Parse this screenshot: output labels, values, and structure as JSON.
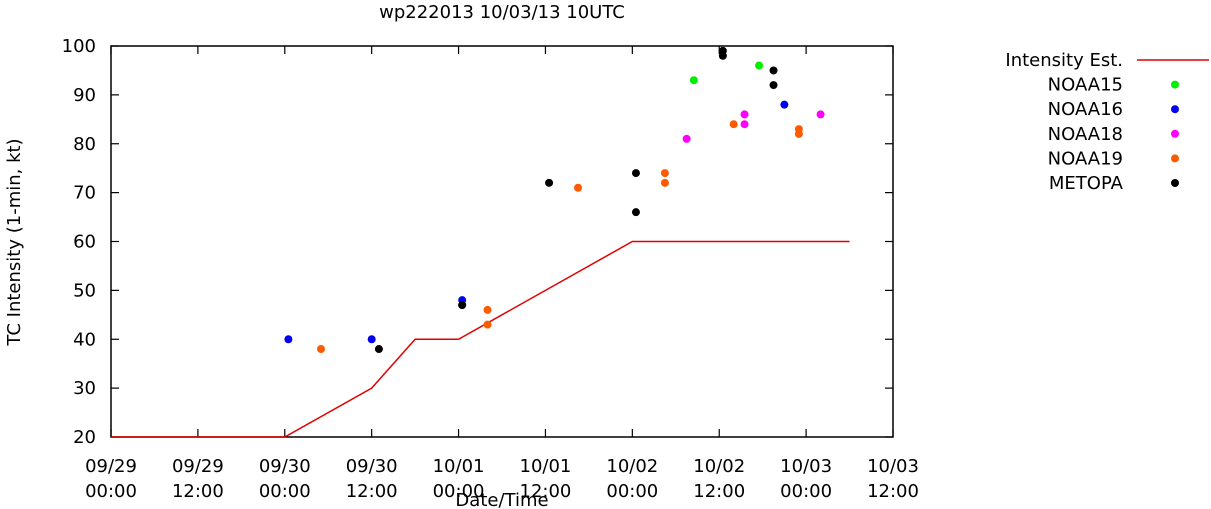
{
  "chart_data": {
    "type": "scatter",
    "title": "wp222013 10/03/13 10UTC",
    "xlabel": "Date/Time",
    "ylabel": "TC Intensity (1-min, kt)",
    "ylim": [
      20,
      100
    ],
    "xlim_hours": [
      0,
      108
    ],
    "yticks": [
      "20",
      "30",
      "40",
      "50",
      "60",
      "70",
      "80",
      "90",
      "100"
    ],
    "xticks": [
      {
        "hours": 0,
        "date": "09/29",
        "time": "00:00"
      },
      {
        "hours": 12,
        "date": "09/29",
        "time": "12:00"
      },
      {
        "hours": 24,
        "date": "09/30",
        "time": "00:00"
      },
      {
        "hours": 36,
        "date": "09/30",
        "time": "12:00"
      },
      {
        "hours": 48,
        "date": "10/01",
        "time": "00:00"
      },
      {
        "hours": 60,
        "date": "10/01",
        "time": "12:00"
      },
      {
        "hours": 72,
        "date": "10/02",
        "time": "00:00"
      },
      {
        "hours": 84,
        "date": "10/02",
        "time": "12:00"
      },
      {
        "hours": 96,
        "date": "10/03",
        "time": "00:00"
      },
      {
        "hours": 108,
        "date": "10/03",
        "time": "12:00"
      }
    ],
    "x_units": "hours since 09/29 00:00",
    "legend_position": "outside-right",
    "line": {
      "name": "Intensity Est.",
      "color": "#e00000",
      "x": [
        0,
        24,
        36,
        42,
        48,
        72,
        102
      ],
      "y": [
        20,
        20,
        30,
        40,
        40,
        60,
        60
      ]
    },
    "series": [
      {
        "name": "NOAA15",
        "color": "#00ee00",
        "x": [
          80.5,
          89.5
        ],
        "y": [
          93,
          96
        ]
      },
      {
        "name": "NOAA16",
        "color": "#0000ee",
        "x": [
          24.5,
          36,
          48.5,
          93
        ],
        "y": [
          40,
          40,
          48,
          88
        ]
      },
      {
        "name": "NOAA18",
        "color": "#ff00ff",
        "x": [
          79.5,
          87.5,
          87.5,
          98
        ],
        "y": [
          81,
          84,
          86,
          86
        ]
      },
      {
        "name": "NOAA19",
        "color": "#ff5a00",
        "x": [
          29,
          52,
          52,
          64.5,
          76.5,
          76.5,
          86,
          95,
          95
        ],
        "y": [
          38,
          43,
          46,
          71,
          72,
          74,
          84,
          82,
          83
        ]
      },
      {
        "name": "METOPA",
        "color": "#000000",
        "x": [
          37,
          48.5,
          48.5,
          60.5,
          72.5,
          72.5,
          84.5,
          84.5,
          91.5,
          91.5
        ],
        "y": [
          38,
          47,
          47,
          72,
          66,
          74,
          98,
          99,
          92,
          95
        ]
      }
    ]
  }
}
